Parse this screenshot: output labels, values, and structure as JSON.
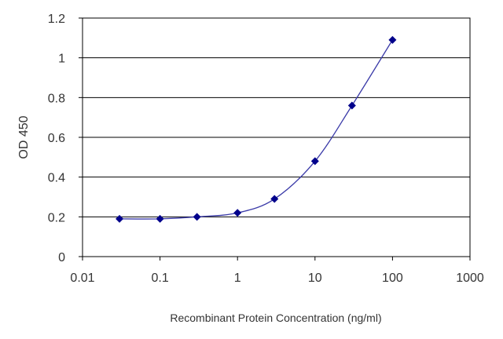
{
  "chart_data": {
    "type": "line",
    "title": "",
    "xlabel": "Recombinant Protein Concentration (ng/ml)",
    "ylabel": "OD 450",
    "x_scale": "log",
    "xlim": [
      0.01,
      1000
    ],
    "ylim": [
      0,
      1.2
    ],
    "x_ticks": [
      0.01,
      0.1,
      1,
      10,
      100,
      1000
    ],
    "x_tick_labels": [
      "0.01",
      "0.1",
      "1",
      "10",
      "100",
      "1000"
    ],
    "y_ticks": [
      0,
      0.2,
      0.4,
      0.6,
      0.8,
      1,
      1.2
    ],
    "y_tick_labels": [
      "0",
      "0.2",
      "0.4",
      "0.6",
      "0.8",
      "1",
      "1.2"
    ],
    "grid": "horizontal",
    "legend": "none",
    "series": [
      {
        "x": [
          0.03,
          0.1,
          0.3,
          1,
          3,
          10,
          30,
          100
        ],
        "y": [
          0.19,
          0.19,
          0.2,
          0.22,
          0.29,
          0.48,
          0.76,
          1.09
        ],
        "color": "#00008b"
      }
    ]
  }
}
